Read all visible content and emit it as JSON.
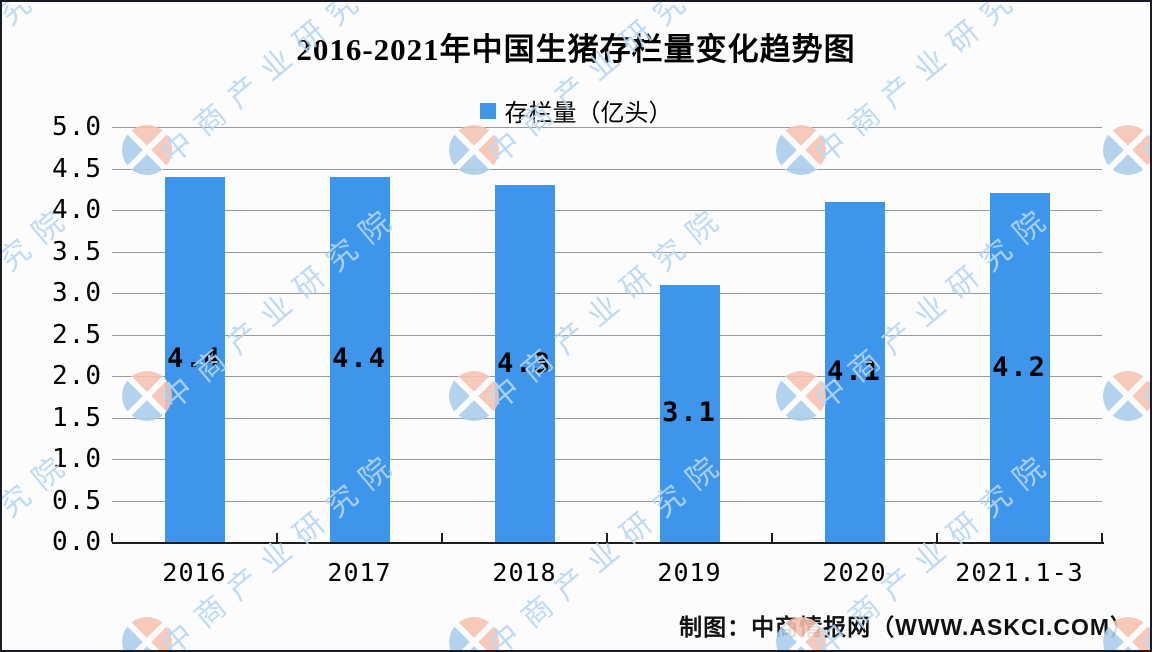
{
  "title": "2016-2021年中国生猪存栏量变化趋势图",
  "legend": {
    "label": "存栏量（亿头）",
    "marker_color": "#3D96EC"
  },
  "footer": "制图：中商情报网（WWW.ASKCI.COM）",
  "watermark": {
    "text": "中商产业研究院",
    "text_color": "#b7d6f1",
    "logo_blue": "#a9cdec",
    "logo_salmon": "#f6c3b1"
  },
  "chart_data": {
    "type": "bar",
    "title": "2016-2021年中国生猪存栏量变化趋势图",
    "series_name": "存栏量（亿头）",
    "categories": [
      "2016",
      "2017",
      "2018",
      "2019",
      "2020",
      "2021.1-3"
    ],
    "values": [
      4.4,
      4.4,
      4.3,
      3.1,
      4.1,
      4.2
    ],
    "value_labels": [
      "4.4",
      "4.4",
      "4.3",
      "3.1",
      "4.1",
      "4.2"
    ],
    "xlabel": "",
    "ylabel": "",
    "ylim": [
      0,
      5
    ],
    "ytick_step": 0.5,
    "ytick_labels": [
      "0.0",
      "0.5",
      "1.0",
      "1.5",
      "2.0",
      "2.5",
      "3.0",
      "3.5",
      "4.0",
      "4.5",
      "5.0"
    ],
    "bar_color": "#3D96EC",
    "grid": true,
    "gridline_color": "#989aa0",
    "legend_position": "top-center"
  }
}
